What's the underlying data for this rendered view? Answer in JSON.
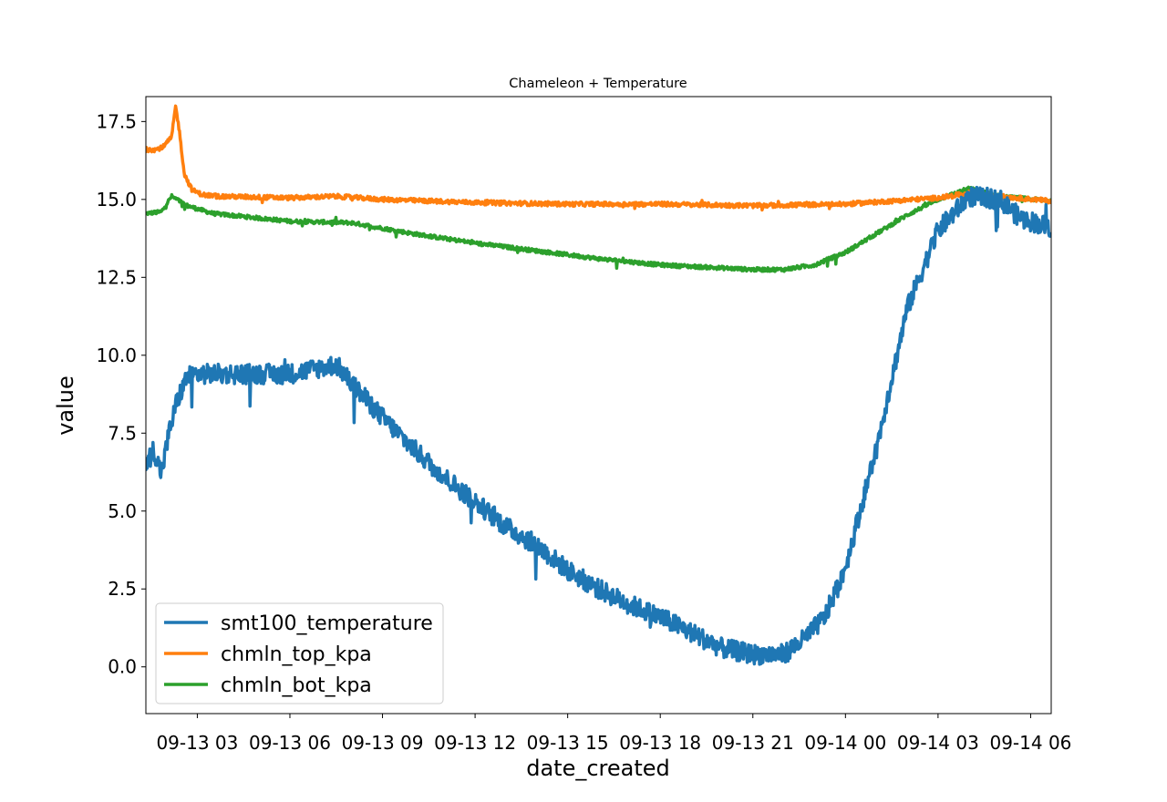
{
  "chart_data": {
    "type": "line",
    "title": "Chameleon + Temperature",
    "xlabel": "date_created",
    "ylabel": "value",
    "xlim": [
      "2023-09-13T01:20",
      "2023-09-14T06:40"
    ],
    "ylim": [
      -1.5,
      18.3
    ],
    "x_ticks": [
      {
        "t": "2023-09-13T03:00",
        "label": "09-13 03"
      },
      {
        "t": "2023-09-13T06:00",
        "label": "09-13 06"
      },
      {
        "t": "2023-09-13T09:00",
        "label": "09-13 09"
      },
      {
        "t": "2023-09-13T12:00",
        "label": "09-13 12"
      },
      {
        "t": "2023-09-13T15:00",
        "label": "09-13 15"
      },
      {
        "t": "2023-09-13T18:00",
        "label": "09-13 18"
      },
      {
        "t": "2023-09-13T21:00",
        "label": "09-13 21"
      },
      {
        "t": "2023-09-14T00:00",
        "label": "09-14 00"
      },
      {
        "t": "2023-09-14T03:00",
        "label": "09-14 03"
      },
      {
        "t": "2023-09-14T06:00",
        "label": "09-14 06"
      }
    ],
    "y_ticks": [
      {
        "v": 0.0,
        "label": "0.0"
      },
      {
        "v": 2.5,
        "label": "2.5"
      },
      {
        "v": 5.0,
        "label": "5.0"
      },
      {
        "v": 7.5,
        "label": "7.5"
      },
      {
        "v": 10.0,
        "label": "10.0"
      },
      {
        "v": 12.5,
        "label": "12.5"
      },
      {
        "v": 15.0,
        "label": "15.0"
      },
      {
        "v": 17.5,
        "label": "17.5"
      }
    ],
    "grid": false,
    "legend": "lower-left",
    "series": [
      {
        "name": "smt100_temperature",
        "color": "#1f77b4",
        "noise": 0.32,
        "x": [
          "2023-09-13T01:20",
          "2023-09-13T01:35",
          "2023-09-13T01:50",
          "2023-09-13T02:05",
          "2023-09-13T02:20",
          "2023-09-13T02:40",
          "2023-09-13T03:00",
          "2023-09-13T04:00",
          "2023-09-13T05:00",
          "2023-09-13T06:00",
          "2023-09-13T07:00",
          "2023-09-13T07:30",
          "2023-09-13T08:00",
          "2023-09-13T09:00",
          "2023-09-13T10:00",
          "2023-09-13T11:00",
          "2023-09-13T12:00",
          "2023-09-13T13:00",
          "2023-09-13T14:00",
          "2023-09-13T15:00",
          "2023-09-13T16:00",
          "2023-09-13T17:00",
          "2023-09-13T18:00",
          "2023-09-13T19:00",
          "2023-09-13T20:00",
          "2023-09-13T21:00",
          "2023-09-13T22:00",
          "2023-09-13T22:40",
          "2023-09-13T23:20",
          "2023-09-14T00:00",
          "2023-09-14T01:00",
          "2023-09-14T02:00",
          "2023-09-14T03:00",
          "2023-09-14T04:00",
          "2023-09-14T05:00",
          "2023-09-14T05:40",
          "2023-09-14T06:40"
        ],
        "values": [
          6.4,
          7.0,
          6.2,
          7.5,
          8.5,
          9.3,
          9.4,
          9.4,
          9.4,
          9.4,
          9.6,
          9.7,
          9.1,
          8.0,
          7.0,
          6.1,
          5.3,
          4.5,
          3.9,
          3.1,
          2.5,
          2.0,
          1.6,
          1.1,
          0.6,
          0.4,
          0.4,
          0.9,
          1.6,
          3.2,
          7.0,
          11.5,
          14.0,
          15.1,
          15.0,
          14.4,
          14.1
        ]
      },
      {
        "name": "chmln_top_kpa",
        "color": "#ff7f0e",
        "noise": 0.07,
        "x": [
          "2023-09-13T01:20",
          "2023-09-13T01:40",
          "2023-09-13T01:55",
          "2023-09-13T02:10",
          "2023-09-13T02:18",
          "2023-09-13T02:25",
          "2023-09-13T02:35",
          "2023-09-13T02:50",
          "2023-09-13T03:10",
          "2023-09-13T03:40",
          "2023-09-13T06:00",
          "2023-09-13T07:30",
          "2023-09-13T09:00",
          "2023-09-13T12:00",
          "2023-09-13T15:00",
          "2023-09-13T18:00",
          "2023-09-13T21:00",
          "2023-09-14T00:00",
          "2023-09-14T03:00",
          "2023-09-14T04:00",
          "2023-09-14T05:00",
          "2023-09-14T06:40"
        ],
        "values": [
          16.6,
          16.6,
          16.7,
          17.0,
          18.0,
          17.2,
          15.8,
          15.3,
          15.15,
          15.1,
          15.05,
          15.1,
          15.0,
          14.9,
          14.85,
          14.85,
          14.8,
          14.85,
          15.05,
          15.2,
          15.1,
          14.95
        ]
      },
      {
        "name": "chmln_bot_kpa",
        "color": "#2ca02c",
        "noise": 0.06,
        "x": [
          "2023-09-13T01:20",
          "2023-09-13T01:50",
          "2023-09-13T02:10",
          "2023-09-13T02:20",
          "2023-09-13T02:40",
          "2023-09-13T03:30",
          "2023-09-13T06:00",
          "2023-09-13T08:00",
          "2023-09-13T10:00",
          "2023-09-13T12:00",
          "2023-09-13T14:00",
          "2023-09-13T16:00",
          "2023-09-13T18:00",
          "2023-09-13T20:00",
          "2023-09-13T21:00",
          "2023-09-13T22:00",
          "2023-09-13T23:00",
          "2023-09-14T00:00",
          "2023-09-14T01:00",
          "2023-09-14T02:00",
          "2023-09-14T03:00",
          "2023-09-14T04:00",
          "2023-09-14T05:00",
          "2023-09-14T06:40"
        ],
        "values": [
          14.55,
          14.6,
          15.1,
          15.0,
          14.8,
          14.55,
          14.3,
          14.25,
          13.9,
          13.6,
          13.35,
          13.1,
          12.9,
          12.8,
          12.75,
          12.75,
          12.9,
          13.3,
          13.9,
          14.5,
          15.0,
          15.35,
          15.1,
          14.95
        ]
      }
    ]
  }
}
